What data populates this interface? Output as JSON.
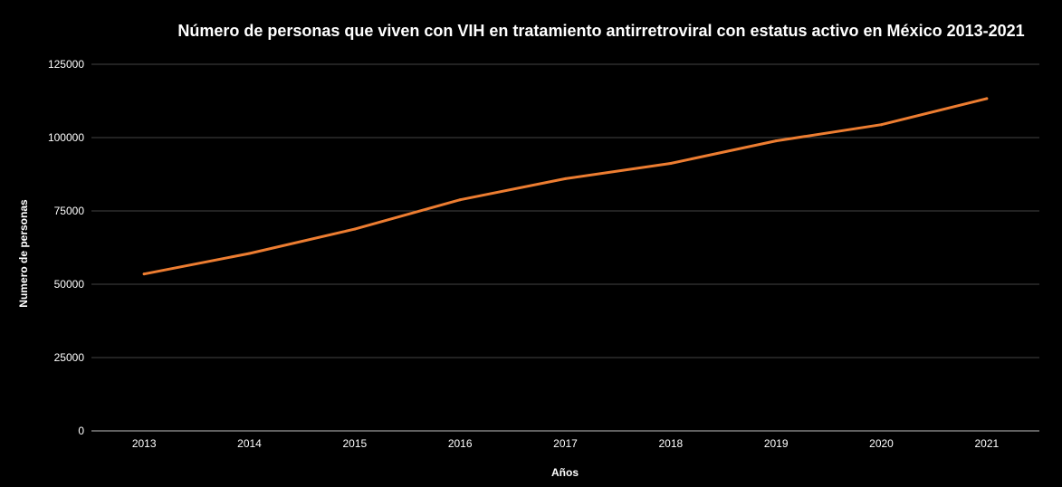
{
  "chart_data": {
    "type": "line",
    "title": "Número de personas que viven con VIH en tratamiento antirretroviral con estatus activo en México 2013-2021",
    "xlabel": "Años",
    "ylabel": "Numero de personas",
    "categories": [
      "2013",
      "2014",
      "2015",
      "2016",
      "2017",
      "2018",
      "2019",
      "2020",
      "2021"
    ],
    "series": [
      {
        "values": [
          53500,
          60500,
          68800,
          78800,
          86000,
          91200,
          98900,
          104400,
          113300
        ]
      }
    ],
    "ylim": [
      0,
      125000
    ],
    "yticks": [
      "0",
      "25000",
      "50000",
      "75000",
      "100000",
      "125000"
    ],
    "grid": true,
    "legend": "none"
  },
  "colors": {
    "background": "#000000",
    "line": "#ed7d31",
    "grid": "#444444",
    "axis": "#bfbfbf",
    "text": "#ffffff"
  }
}
